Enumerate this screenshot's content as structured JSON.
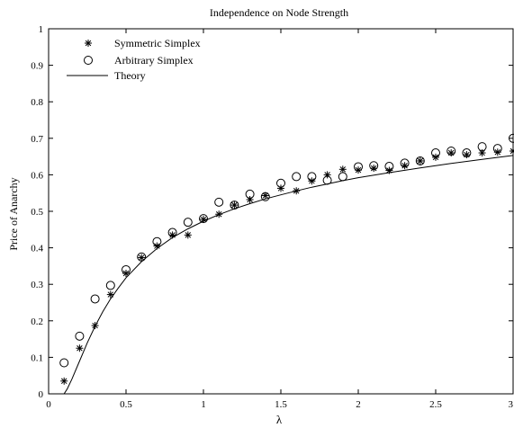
{
  "chart_data": {
    "type": "scatter",
    "title": "Independence on Node Strength",
    "xlabel": "λ",
    "ylabel": "Price of Anarchy",
    "xlim": [
      0,
      3
    ],
    "ylim": [
      0,
      1
    ],
    "xticks": [
      0,
      0.5,
      1,
      1.5,
      2,
      2.5,
      3
    ],
    "xtick_labels": [
      "0",
      "0.5",
      "1",
      "1.5",
      "2",
      "2.5",
      "3"
    ],
    "yticks": [
      0,
      0.1,
      0.2,
      0.3,
      0.4,
      0.5,
      0.6,
      0.7,
      0.8,
      0.9,
      1
    ],
    "ytick_labels": [
      "0",
      "0.1",
      "0.2",
      "0.3",
      "0.4",
      "0.5",
      "0.6",
      "0.7",
      "0.8",
      "0.9",
      "1"
    ],
    "grid": false,
    "legend_position": "top-left",
    "series": [
      {
        "name": "Symmetric Simplex",
        "marker": "asterisk",
        "x": [
          0.1,
          0.2,
          0.3,
          0.4,
          0.5,
          0.6,
          0.7,
          0.8,
          0.9,
          1.0,
          1.1,
          1.2,
          1.3,
          1.4,
          1.5,
          1.6,
          1.7,
          1.8,
          1.9,
          2.0,
          2.1,
          2.2,
          2.3,
          2.4,
          2.5,
          2.6,
          2.7,
          2.8,
          2.9,
          3.0
        ],
        "y": [
          0.035,
          0.125,
          0.187,
          0.272,
          0.33,
          0.373,
          0.405,
          0.435,
          0.435,
          0.478,
          0.492,
          0.517,
          0.532,
          0.543,
          0.563,
          0.556,
          0.583,
          0.6,
          0.615,
          0.613,
          0.618,
          0.612,
          0.625,
          0.638,
          0.648,
          0.66,
          0.655,
          0.66,
          0.662,
          0.665
        ]
      },
      {
        "name": "Arbitrary Simplex",
        "marker": "circle",
        "x": [
          0.1,
          0.2,
          0.3,
          0.4,
          0.5,
          0.6,
          0.7,
          0.8,
          0.9,
          1.0,
          1.1,
          1.2,
          1.3,
          1.4,
          1.5,
          1.6,
          1.7,
          1.8,
          1.9,
          2.0,
          2.1,
          2.2,
          2.3,
          2.4,
          2.5,
          2.6,
          2.7,
          2.8,
          2.9,
          3.0
        ],
        "y": [
          0.085,
          0.158,
          0.26,
          0.297,
          0.34,
          0.375,
          0.417,
          0.442,
          0.47,
          0.48,
          0.525,
          0.517,
          0.547,
          0.54,
          0.577,
          0.595,
          0.595,
          0.585,
          0.595,
          0.622,
          0.625,
          0.623,
          0.632,
          0.638,
          0.66,
          0.665,
          0.66,
          0.677,
          0.672,
          0.7
        ]
      },
      {
        "name": "Theory",
        "marker": "line",
        "x": [
          0.1,
          0.12,
          0.15,
          0.2,
          0.25,
          0.3,
          0.35,
          0.4,
          0.45,
          0.5,
          0.6,
          0.7,
          0.8,
          0.9,
          1.0,
          1.1,
          1.2,
          1.3,
          1.4,
          1.5,
          1.6,
          1.7,
          1.8,
          1.9,
          2.0,
          2.2,
          2.4,
          2.6,
          2.8,
          3.0
        ],
        "y": [
          0.0,
          0.013,
          0.04,
          0.09,
          0.14,
          0.185,
          0.225,
          0.26,
          0.29,
          0.318,
          0.362,
          0.398,
          0.428,
          0.452,
          0.473,
          0.491,
          0.507,
          0.521,
          0.534,
          0.545,
          0.556,
          0.566,
          0.575,
          0.584,
          0.592,
          0.606,
          0.619,
          0.631,
          0.642,
          0.653
        ]
      }
    ]
  }
}
